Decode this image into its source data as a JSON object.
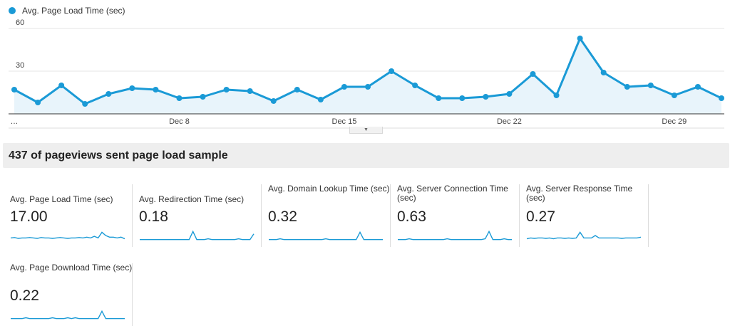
{
  "legend": {
    "label": "Avg. Page Load Time (sec)",
    "color": "#1a9ad6"
  },
  "chart_data": {
    "type": "area",
    "series": [
      {
        "name": "Avg. Page Load Time (sec)",
        "values": [
          17,
          8,
          20,
          7,
          14,
          18,
          17,
          11,
          12,
          17,
          16,
          9,
          17,
          10,
          19,
          19,
          30,
          20,
          11,
          11,
          12,
          14,
          28,
          13,
          53,
          29,
          19,
          20,
          13,
          19,
          11
        ]
      }
    ],
    "x_tick_labels": [
      "…",
      "Dec 8",
      "Dec 15",
      "Dec 22",
      "Dec 29"
    ],
    "y_ticks": [
      30,
      60
    ],
    "ylim": [
      0,
      60
    ],
    "grid": true
  },
  "sample_text": "437 of pageviews sent page load sample",
  "collapse_icon": "caret-down-icon",
  "tiles": [
    {
      "label": "Avg. Page Load Time (sec)",
      "value": "17.00",
      "spark": [
        4,
        4.5,
        3.5,
        4,
        4,
        4.5,
        4,
        3.5,
        4.5,
        4,
        4,
        3.5,
        4,
        4.5,
        4,
        3.5,
        4,
        4,
        4.5,
        4,
        5,
        4,
        6,
        4,
        11,
        7,
        5,
        5,
        4,
        5,
        3
      ]
    },
    {
      "label": "Avg. Redirection Time (sec)",
      "value": "0.18",
      "spark": [
        2,
        2,
        2,
        2,
        2,
        2,
        2,
        2,
        2,
        2,
        2,
        2,
        2,
        2,
        12,
        2,
        2,
        2,
        3,
        2,
        2,
        2,
        2,
        2,
        2,
        2,
        3,
        2,
        2,
        2,
        9
      ]
    },
    {
      "label": "Avg. Domain Lookup Time (sec)",
      "value": "0.32",
      "spark": [
        2,
        2,
        2,
        3,
        2,
        2,
        2,
        2,
        2,
        2,
        2,
        2,
        2,
        2,
        2,
        3,
        2,
        2,
        2,
        2,
        2,
        2,
        2,
        2,
        11,
        2,
        2,
        2,
        2,
        2,
        2
      ]
    },
    {
      "label": "Avg. Server Connection Time (sec)",
      "value": "0.63",
      "spark": [
        2,
        2,
        2,
        3,
        2,
        2,
        2,
        2,
        2,
        2,
        2,
        2,
        2,
        3,
        2,
        2,
        2,
        2,
        2,
        2,
        2,
        2,
        2,
        3,
        12,
        2,
        2,
        2,
        3,
        2,
        2
      ]
    },
    {
      "label": "Avg. Server Response Time (sec)",
      "value": "0.27",
      "spark": [
        3,
        4,
        3.5,
        4,
        4,
        3.5,
        4,
        3,
        4,
        4,
        3.5,
        4,
        3.5,
        4,
        11,
        4,
        4,
        4,
        7,
        4,
        4,
        4,
        4,
        4,
        4,
        3.5,
        4,
        4,
        4,
        4,
        5
      ]
    },
    {
      "label": "Avg. Page Download Time (sec)",
      "value": "0.22",
      "spark": [
        2,
        2,
        2,
        2,
        3,
        2,
        2,
        2,
        2,
        2,
        2,
        3,
        2,
        2,
        2,
        3,
        2,
        3,
        2,
        2,
        2,
        2,
        2,
        2,
        11,
        2,
        2,
        2,
        2,
        2,
        2
      ]
    }
  ]
}
